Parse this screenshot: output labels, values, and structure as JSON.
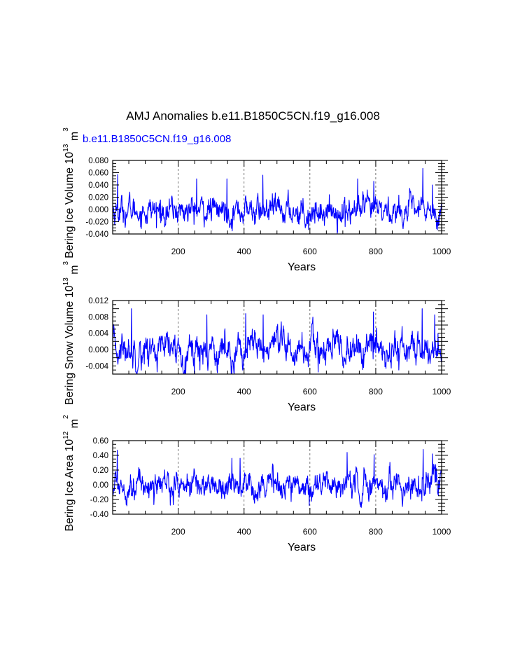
{
  "title": "AMJ Anomalies b.e11.B1850C5CN.f19_g16.008",
  "case_label": "b.e11.B1850C5CN.f19_g16.008",
  "colors": {
    "series": "#0000ff",
    "axes": "#000000",
    "grid": "#555555"
  },
  "chart_data": [
    {
      "type": "line",
      "ylabel": "Bering Ice Volume 10",
      "ylabel_exp": "13",
      "ylabel_unit": "m",
      "ylabel_unit_exp": "3",
      "xlabel": "Years",
      "xlim": [
        1,
        1000
      ],
      "ylim": [
        -0.04,
        0.08
      ],
      "yticks": [
        "0.080",
        "0.060",
        "0.040",
        "0.020",
        "0.000",
        "-0.020",
        "-0.040"
      ],
      "ytick_values": [
        0.08,
        0.06,
        0.04,
        0.02,
        0.0,
        -0.02,
        -0.04
      ],
      "xticks": [
        "200",
        "400",
        "600",
        "800",
        "1000"
      ],
      "xtick_values": [
        200,
        400,
        600,
        800,
        1000
      ],
      "gridlines_x": [
        200,
        400,
        600,
        800
      ],
      "series": [
        {
          "name": "Bering Ice Volume",
          "spread": 0.012,
          "base": -0.002,
          "peaks": [
            [
              16,
              0.057
            ],
            [
              256,
              0.05
            ],
            [
              348,
              0.05
            ],
            [
              457,
              0.056
            ],
            [
              745,
              0.05
            ],
            [
              794,
              0.046
            ],
            [
              943,
              0.067
            ],
            [
              972,
              0.04
            ],
            [
              134,
              -0.03
            ],
            [
              596,
              -0.033
            ],
            [
              707,
              -0.028
            ]
          ]
        }
      ]
    },
    {
      "type": "line",
      "ylabel": "Bering Snow Volume 10",
      "ylabel_exp": "13",
      "ylabel_unit": "m",
      "ylabel_unit_exp": "3",
      "xlabel": "Years",
      "xlim": [
        1,
        1000
      ],
      "ylim": [
        -0.006,
        0.012
      ],
      "yticks": [
        "0.012",
        "0.008",
        "0.004",
        "0.000",
        "-0.004"
      ],
      "ytick_values": [
        0.012,
        0.008,
        0.004,
        0.0,
        -0.004
      ],
      "xticks": [
        "200",
        "400",
        "600",
        "800",
        "1000"
      ],
      "xtick_values": [
        200,
        400,
        600,
        800,
        1000
      ],
      "gridlines_x": [
        200,
        400,
        600,
        800
      ],
      "series": [
        {
          "name": "Bering Snow Volume",
          "spread": 0.0022,
          "base": 0.0,
          "peaks": [
            [
              58,
              0.01
            ],
            [
              287,
              0.0085
            ],
            [
              405,
              0.0088
            ],
            [
              458,
              0.0085
            ],
            [
              793,
              0.0092
            ],
            [
              941,
              0.01
            ],
            [
              979,
              0.0085
            ],
            [
              266,
              -0.005
            ],
            [
              625,
              -0.0055
            ],
            [
              870,
              -0.005
            ]
          ]
        }
      ]
    },
    {
      "type": "line",
      "ylabel": "Bering Ice Area 10",
      "ylabel_exp": "12",
      "ylabel_unit": "m",
      "ylabel_unit_exp": "2",
      "xlabel": "Years",
      "xlim": [
        1,
        1000
      ],
      "ylim": [
        -0.4,
        0.6
      ],
      "yticks": [
        "0.60",
        "0.40",
        "0.20",
        "0.00",
        "-0.20",
        "-0.40"
      ],
      "ytick_values": [
        0.6,
        0.4,
        0.2,
        0.0,
        -0.2,
        -0.4
      ],
      "xticks": [
        "200",
        "400",
        "600",
        "800",
        "1000"
      ],
      "xtick_values": [
        200,
        400,
        600,
        800,
        1000
      ],
      "gridlines_x": [
        200,
        400,
        600,
        800
      ],
      "series": [
        {
          "name": "Bering Ice Area",
          "spread": 0.1,
          "base": 0.0,
          "peaks": [
            [
              15,
              0.47
            ],
            [
              363,
              0.36
            ],
            [
              388,
              0.36
            ],
            [
              713,
              0.44
            ],
            [
              795,
              0.41
            ],
            [
              944,
              0.48
            ],
            [
              972,
              0.42
            ],
            [
              598,
              -0.28
            ],
            [
              126,
              -0.27
            ],
            [
              940,
              -0.22
            ]
          ]
        }
      ]
    }
  ]
}
